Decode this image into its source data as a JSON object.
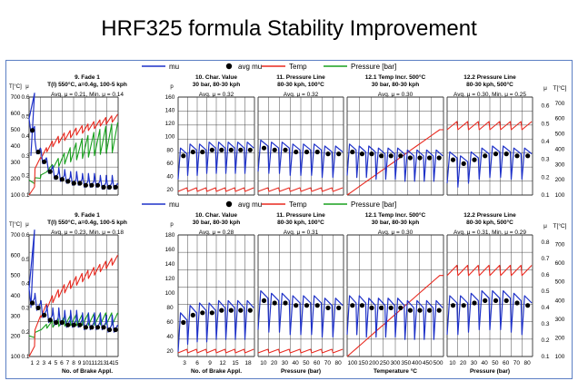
{
  "page": {
    "title": "HRF325 formula Stability Improvement"
  },
  "colors": {
    "mu": "#1f32c8",
    "avg_mu": "#000000",
    "temp": "#e8281e",
    "pressure": "#18a01e",
    "frame": "#5b7fc4"
  },
  "chart_data": [
    {
      "type": "line",
      "legend": {
        "placement": "top",
        "entries": [
          "mu",
          "avg mu",
          "Temp",
          "Pressure [bar]"
        ]
      },
      "axes": {
        "temp_label": "T[°C]",
        "mu_label": "μ",
        "pressure_label": "p",
        "temp_ticks": [
          "700",
          "600",
          "500",
          "400",
          "300",
          "200",
          "100"
        ],
        "mu_ticks": [
          "0.6",
          "0.5",
          "0.4",
          "0.3",
          "0.2",
          "0.1"
        ],
        "pressure_ticks": [
          "160",
          "140",
          "120",
          "100",
          "80",
          "60",
          "40",
          "20"
        ],
        "right_mu_ticks": [
          "μ",
          "0.6",
          "0.5",
          "0.4",
          "0.3",
          "0.2",
          "0.1"
        ],
        "right_temp_ticks": [
          "T[°C]",
          "700",
          "600",
          "500",
          "400",
          "300",
          "200",
          "100"
        ]
      },
      "panels": [
        {
          "title": "9. Fade 1",
          "subtitle": "T(I) 550°C, a=0.4g, 100-5 kph",
          "avg": "Avg. μ = 0.21, Min. μ = 0.14",
          "avg_mu": [
            0.43,
            0.32,
            0.27,
            0.22,
            0.19,
            0.18,
            0.17,
            0.16,
            0.16,
            0.15,
            0.15,
            0.15,
            0.14,
            0.14,
            0.14
          ],
          "temp": [
            150,
            330,
            390,
            430,
            460,
            480,
            495,
            510,
            525,
            535,
            550,
            560,
            575,
            585,
            595
          ],
          "pressure": [
            15,
            22,
            30,
            40,
            48,
            55,
            62,
            68,
            74,
            78,
            82,
            86,
            90,
            93,
            95
          ]
        },
        {
          "title": "10. Char. Value",
          "subtitle": "30 bar, 80-30 kph",
          "avg": "Avg. μ = 0.32",
          "avg_mu": [
            0.3,
            0.32,
            0.32,
            0.33,
            0.33,
            0.33,
            0.33,
            0.33
          ],
          "temp_range": [
            0,
            0
          ]
        },
        {
          "title": "11. Pressure Line",
          "subtitle": "80-30 kph, 100°C",
          "avg": "Avg. μ = 0.32",
          "avg_mu": [
            0.34,
            0.33,
            0.33,
            0.32,
            0.32,
            0.32,
            0.31,
            0.31
          ],
          "temp_range": [
            0,
            0
          ]
        },
        {
          "title": "12.1 Temp Incr. 500°C",
          "subtitle": "30 bar, 80-30 kph",
          "avg": "Avg. μ = 0.30",
          "avg_mu": [
            0.32,
            0.31,
            0.31,
            0.3,
            0.3,
            0.3,
            0.29,
            0.29,
            0.29,
            0.29
          ],
          "temp_range": [
            100,
            500
          ]
        },
        {
          "title": "12.2 Pressure Line",
          "subtitle": "80-30 kph, 500°C",
          "avg": "Avg. μ = 0.30, Min. μ = 0.25",
          "avg_mu": [
            0.28,
            0.26,
            0.28,
            0.3,
            0.31,
            0.31,
            0.3,
            0.3
          ],
          "temp_range": [
            500,
            550
          ]
        }
      ]
    },
    {
      "type": "line",
      "legend": {
        "placement": "top",
        "entries": [
          "mu",
          "avg mu",
          "Temp",
          "Pressure [bar]"
        ]
      },
      "axes": {
        "temp_label": "T[°C]",
        "mu_label": "μ",
        "pressure_label": "p",
        "temp_ticks": [
          "700",
          "600",
          "500",
          "400",
          "300",
          "200",
          "100"
        ],
        "mu_ticks": [
          "0.6",
          "0.5",
          "0.4",
          "0.3",
          "0.2",
          "0.1"
        ],
        "pressure_ticks": [
          "180",
          "160",
          "140",
          "120",
          "100",
          "80",
          "60",
          "40",
          "20"
        ],
        "right_mu_ticks": [
          "μ",
          "0.8",
          "0.7",
          "0.6",
          "0.5",
          "0.4",
          "0.3",
          "0.2",
          "0.1"
        ],
        "right_temp_ticks": [
          "T[°C]",
          "700",
          "600",
          "500",
          "400",
          "300",
          "200",
          "100"
        ]
      },
      "panels": [
        {
          "title": "9. Fade 1",
          "subtitle": "T(I) 550°C, a=0.4g, 100-5 kph",
          "avg": "Avg. μ = 0.23, Min. μ = 0.18",
          "xlabel": "No. of Brake Appl.",
          "x_ticks": [
            "1",
            "2",
            "3",
            "4",
            "5",
            "6",
            "7",
            "8",
            "9",
            "10",
            "11",
            "12",
            "13",
            "14",
            "15"
          ],
          "avg_mu": [
            0.32,
            0.3,
            0.27,
            0.25,
            0.24,
            0.24,
            0.23,
            0.23,
            0.23,
            0.22,
            0.22,
            0.22,
            0.22,
            0.21,
            0.21
          ],
          "temp": [
            150,
            300,
            360,
            400,
            430,
            455,
            475,
            495,
            510,
            525,
            540,
            555,
            570,
            585,
            600
          ],
          "pressure": [
            20,
            28,
            34,
            38,
            40,
            42,
            43,
            44,
            44,
            45,
            45,
            45,
            46,
            46,
            46
          ]
        },
        {
          "title": "10. Char. Value",
          "subtitle": "30 bar, 80-30 kph",
          "avg": "Avg. μ = 0.28",
          "xlabel": "No. of Brake Appl.",
          "x_ticks": [
            "3",
            "6",
            "9",
            "12",
            "15",
            "18"
          ],
          "avg_mu": [
            0.24,
            0.27,
            0.28,
            0.28,
            0.29,
            0.29,
            0.29,
            0.29
          ],
          "temp_range": [
            0,
            0
          ]
        },
        {
          "title": "11. Pressure Line",
          "subtitle": "80-30 kph, 100°C",
          "avg": "Avg. μ = 0.31",
          "xlabel": "Pressure (bar)",
          "x_ticks": [
            "10",
            "20",
            "30",
            "40",
            "50",
            "60",
            "70",
            "80"
          ],
          "avg_mu": [
            0.33,
            0.32,
            0.32,
            0.31,
            0.31,
            0.31,
            0.3,
            0.3
          ],
          "temp_range": [
            0,
            0
          ]
        },
        {
          "title": "12.1 Temp Incr. 500°C",
          "subtitle": "30 bar, 80-30 kph",
          "avg": "Avg. μ = 0.30",
          "xlabel": "Temperature °C",
          "x_ticks": [
            "100",
            "150",
            "200",
            "250",
            "300",
            "350",
            "400",
            "450",
            "500"
          ],
          "avg_mu": [
            0.31,
            0.31,
            0.3,
            0.3,
            0.3,
            0.3,
            0.29,
            0.29,
            0.29,
            0.29
          ],
          "temp_range": [
            100,
            500
          ]
        },
        {
          "title": "12.2 Pressure Line",
          "subtitle": "80-30 kph, 500°C",
          "avg": "Avg. μ = 0.31, Min. μ = 0.29",
          "xlabel": "Pressure (bar)",
          "x_ticks": [
            "10",
            "20",
            "30",
            "40",
            "50",
            "60",
            "70",
            "80"
          ],
          "avg_mu": [
            0.31,
            0.31,
            0.32,
            0.33,
            0.33,
            0.33,
            0.32,
            0.31
          ],
          "temp_range": [
            500,
            550
          ]
        }
      ]
    }
  ]
}
